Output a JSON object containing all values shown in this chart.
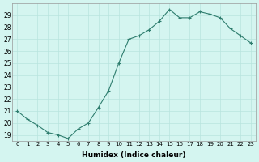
{
  "x": [
    0,
    1,
    2,
    3,
    4,
    5,
    6,
    7,
    8,
    9,
    10,
    11,
    12,
    13,
    14,
    15,
    16,
    17,
    18,
    19,
    20,
    21,
    22,
    23
  ],
  "y": [
    21.0,
    20.3,
    19.8,
    19.2,
    19.0,
    18.7,
    19.5,
    20.0,
    21.3,
    22.7,
    25.0,
    27.0,
    27.3,
    27.8,
    28.5,
    29.5,
    28.8,
    28.8,
    29.3,
    29.1,
    28.8,
    27.9,
    27.3,
    26.7
  ],
  "line_color": "#2e7d6e",
  "marker": "+",
  "marker_size": 3,
  "bg_color": "#d4f5f0",
  "grid_color": "#b8e4de",
  "xlabel": "Humidex (Indice chaleur)",
  "xlim": [
    -0.5,
    23.5
  ],
  "ylim": [
    18.5,
    30.0
  ],
  "yticks": [
    19,
    20,
    21,
    22,
    23,
    24,
    25,
    26,
    27,
    28,
    29
  ],
  "xticks": [
    0,
    1,
    2,
    3,
    4,
    5,
    6,
    7,
    8,
    9,
    10,
    11,
    12,
    13,
    14,
    15,
    16,
    17,
    18,
    19,
    20,
    21,
    22,
    23
  ]
}
